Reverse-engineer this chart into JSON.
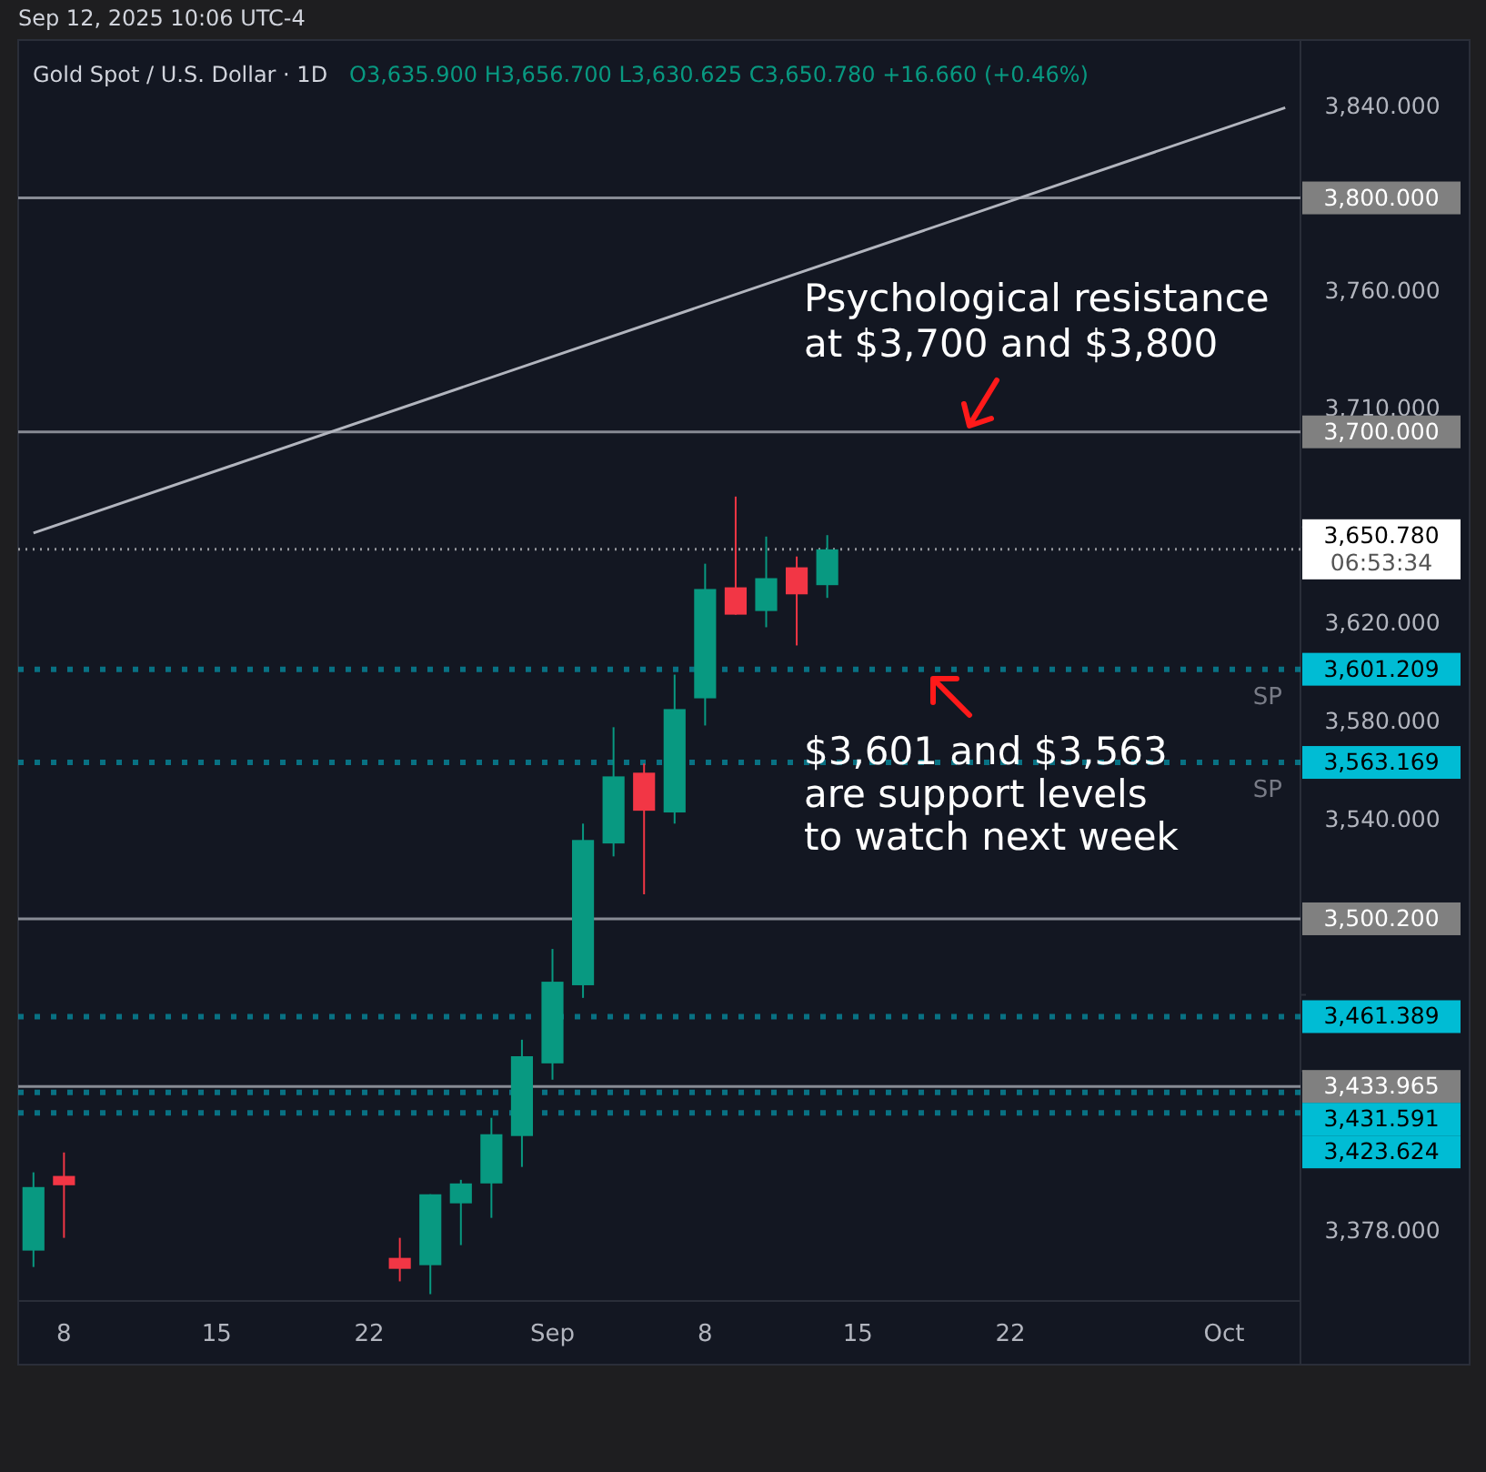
{
  "chart_data": {
    "type": "candlestick",
    "title": "Gold Spot / U.S. Dollar · 1D",
    "subtitle": "O3,635.900 H3,656.700 L3,630.625 C3,650.780 +16.660 (+0.46%)",
    "categories": [
      null,
      "8",
      null,
      null,
      null,
      null,
      "15",
      null,
      null,
      null,
      null,
      "22",
      null,
      null,
      null,
      null,
      null,
      "Sep",
      null,
      null,
      null,
      null,
      "8",
      null,
      null,
      null,
      null,
      "15",
      null,
      null,
      null,
      null,
      "22",
      null,
      null,
      null,
      null,
      null,
      null,
      "Oct",
      null,
      null
    ],
    "ohlc": [
      [
        3370.3,
        3400.5,
        3364.0,
        3394.8
      ],
      [
        3399.1,
        3408.2,
        3375.2,
        3395.5
      ],
      null,
      null,
      null,
      null,
      null,
      null,
      null,
      null,
      null,
      null,
      [
        3367.5,
        3375.2,
        3358.5,
        3363.3
      ],
      [
        3364.7,
        3392.0,
        3353.6,
        3392.0
      ],
      [
        3388.5,
        3397.6,
        3372.4,
        3396.2
      ],
      [
        3396.2,
        3421.7,
        3382.9,
        3415.3
      ],
      [
        3414.6,
        3452.3,
        3402.6,
        3445.8
      ],
      [
        3443.0,
        3488.2,
        3436.6,
        3475.2
      ],
      [
        3473.8,
        3538.4,
        3468.8,
        3531.8
      ],
      [
        3530.4,
        3577.5,
        3525.2,
        3557.5
      ],
      [
        3559.0,
        3562.7,
        3510.0,
        3543.6
      ],
      [
        3542.9,
        3599.0,
        3538.4,
        3584.9
      ],
      [
        3589.3,
        3644.8,
        3578.2,
        3634.3
      ],
      [
        3635.0,
        3672.8,
        3623.7,
        3623.7
      ],
      [
        3625.2,
        3656.1,
        3618.5,
        3638.8
      ],
      [
        3643.3,
        3647.8,
        3611.0,
        3632.1
      ],
      [
        3635.9,
        3656.7,
        3630.625,
        3650.78
      ],
      null,
      null,
      null,
      null,
      null,
      null,
      null,
      null,
      null,
      null,
      null,
      null,
      null,
      null,
      null
    ],
    "colors": [
      "#089981",
      "#f23645",
      null,
      null,
      null,
      null,
      null,
      null,
      null,
      null,
      null,
      null,
      "#f23645",
      "#089981",
      "#089981",
      "#089981",
      "#089981",
      "#089981",
      "#089981",
      "#089981",
      "#f23645",
      "#089981",
      "#089981",
      "#f23645",
      "#089981",
      "#f23645",
      "#089981",
      null,
      null,
      null,
      null,
      null,
      null,
      null,
      null,
      null,
      null,
      null,
      null,
      null,
      null,
      null
    ],
    "series": [
      {
        "type": "line",
        "color": "#b2b5be",
        "values": [
          3657.6,
          null,
          null,
          null,
          null,
          null,
          null,
          null,
          null,
          null,
          null,
          null,
          null,
          null,
          null,
          null,
          null,
          null,
          null,
          null,
          null,
          null,
          null,
          null,
          null,
          null,
          null,
          null,
          null,
          null,
          null,
          null,
          null,
          null,
          null,
          null,
          null,
          null,
          null,
          null,
          null,
          3839.3
        ]
      }
    ],
    "log": true,
    "ylim": [
      3351,
      3865
    ],
    "yticks": [
      {
        "value": 3840,
        "label": "3,840.000"
      },
      {
        "value": 3760,
        "label": "3,760.000"
      },
      {
        "value": 3710,
        "label": "3,710.000"
      },
      {
        "value": 3660,
        "label": null
      },
      {
        "value": 3620,
        "label": "3,620.000"
      },
      {
        "value": 3580,
        "label": "3,580.000"
      },
      {
        "value": 3540,
        "label": "3,540.000"
      },
      {
        "value": 3470,
        "label": null
      },
      {
        "value": 3440,
        "label": null
      },
      {
        "value": 3378,
        "label": "3,378.000"
      }
    ],
    "ref_lines": [
      {
        "axis": "y",
        "value": 3800,
        "label": "3,800.000",
        "color": "#9598a1",
        "line_style": "solid"
      },
      {
        "axis": "y",
        "value": 3700,
        "label": "3,700.000",
        "color": "#9598a1",
        "line_style": "solid"
      },
      {
        "axis": "y",
        "value": 3650.78,
        "label": "3,650.780\n06:53:34",
        "color": "#ffffff",
        "line_style": "dotted"
      },
      {
        "axis": "y",
        "value": 3601.209,
        "label": "3,601.209",
        "color": "#00bcd4",
        "line_style": "dotted"
      },
      {
        "axis": "y",
        "value": 3563.169,
        "label": "3,563.169",
        "color": "#00bcd4",
        "line_style": "dotted"
      },
      {
        "axis": "y",
        "value": 3500.2,
        "label": "3,500.200",
        "color": "#9598a1",
        "line_style": "solid"
      },
      {
        "axis": "y",
        "value": 3461.389,
        "label": "3,461.389",
        "color": "#00bcd4",
        "line_style": "dotted"
      },
      {
        "axis": "y",
        "value": 3433.965,
        "label": "3,433.965",
        "color": "#9598a1",
        "line_style": "solid"
      },
      {
        "axis": "y",
        "value": 3431.591,
        "label": "3,431.591",
        "color": "#00bcd4",
        "line_style": "dotted"
      },
      {
        "axis": "y",
        "value": 3423.624,
        "label": "3,423.624",
        "color": "#00bcd4",
        "line_style": "dotted"
      }
    ],
    "annotations": [
      "Sep 12, 2025 10:06 UTC-4",
      "Psychological resistance\nat $3,700 and $3,800",
      "$3,601 and $3,563\nare support levels\nto watch next week",
      {
        "text": "SP",
        "y": 3601.209
      },
      {
        "text": "SP",
        "y": 3563.169
      }
    ]
  }
}
